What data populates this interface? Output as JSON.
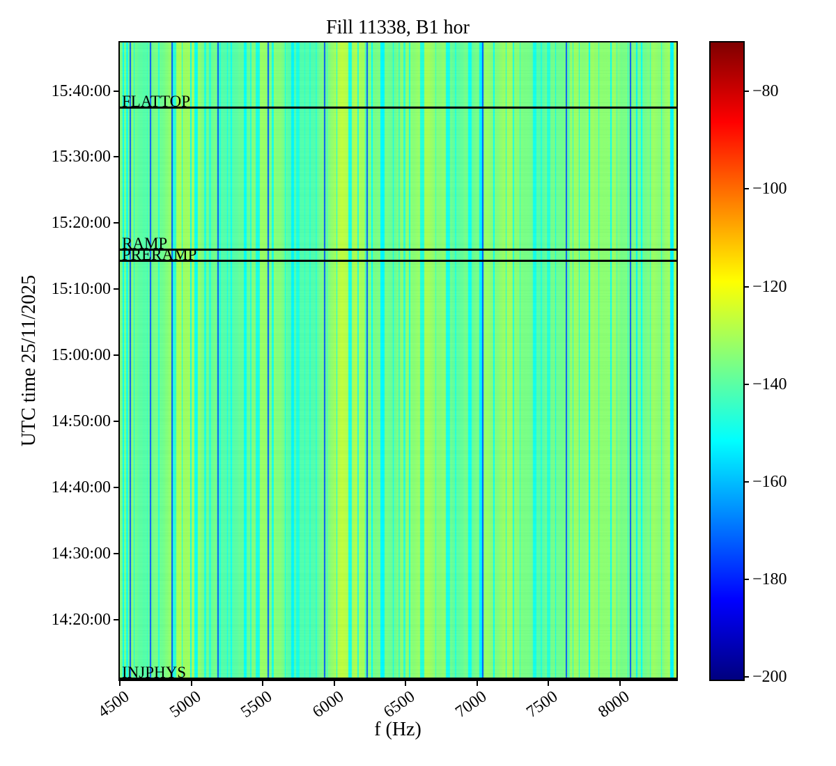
{
  "figure": {
    "background": "#ffffff",
    "spine_color": "#000000"
  },
  "chart_data": {
    "type": "heatmap",
    "title": "Fill 11338, B1 hor",
    "xlabel": "f (Hz)",
    "ylabel": "UTC time 25/11/2025",
    "grid": false,
    "x_axis": {
      "unit": "Hz",
      "min": 4500,
      "max": 8395,
      "ticks": [
        4500,
        5000,
        5500,
        6000,
        6500,
        7000,
        7500,
        8000
      ],
      "tick_labels": [
        "4500",
        "5000",
        "5500",
        "6000",
        "6500",
        "7000",
        "7500",
        "8000"
      ]
    },
    "y_axis": {
      "date": "25/11/2025",
      "start_time": "14:10:55",
      "end_time": "15:47:20",
      "ticks": [
        "15:40:00",
        "15:30:00",
        "15:20:00",
        "15:10:00",
        "15:00:00",
        "14:50:00",
        "14:40:00",
        "14:30:00",
        "14:20:00"
      ]
    },
    "colorbar": {
      "colormap": "jet",
      "clim": [
        -200.5,
        -70
      ],
      "ticks": [
        -80,
        -100,
        -120,
        -140,
        -160,
        -180,
        -200
      ],
      "tick_labels": [
        "−80",
        "−100",
        "−120",
        "−140",
        "−160",
        "−180",
        "−200"
      ],
      "stops": [
        [
          0.0,
          "#00007f"
        ],
        [
          0.125,
          "#0000ff"
        ],
        [
          0.375,
          "#00ffff"
        ],
        [
          0.625,
          "#ffff00"
        ],
        [
          0.875,
          "#ff0000"
        ],
        [
          1.0,
          "#7f0000"
        ]
      ]
    },
    "beam_modes": [
      {
        "label": "FLATTOP",
        "time": "15:37:30"
      },
      {
        "label": "RAMP",
        "time": "15:16:00"
      },
      {
        "label": "PRERAMP",
        "time": "15:14:20"
      },
      {
        "label": "INJPHYS",
        "time": "14:11:00"
      }
    ],
    "spectrum": {
      "description": "Vertical frequency stripes, nearly constant over time",
      "base_value_db": -135.5,
      "typical_range_db": [
        -141,
        -127
      ],
      "cyan_stripe_value_db": [
        -153,
        -145
      ],
      "blue_line_value_db": -173,
      "blue_lines_hz": [
        4568,
        4710,
        4861,
        5182,
        5533,
        5928,
        6225,
        7034,
        7619,
        8067
      ],
      "seed": 42
    }
  }
}
